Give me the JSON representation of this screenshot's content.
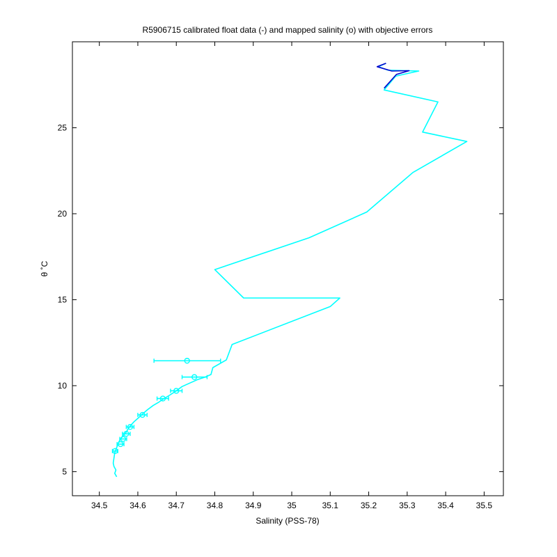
{
  "chart_data": {
    "type": "line",
    "title": "R5906715 calibrated float data (-) and mapped salinity (o) with objective errors",
    "xlabel": "Salinity (PSS-78)",
    "ylabel": "θ ˚C",
    "xlim": [
      34.43,
      35.55
    ],
    "ylim": [
      3.6,
      30
    ],
    "x_ticks": [
      "34.5",
      "34.6",
      "34.7",
      "34.8",
      "34.9",
      "35",
      "35.1",
      "35.2",
      "35.3",
      "35.4",
      "35.5"
    ],
    "y_ticks": [
      "5",
      "10",
      "15",
      "20",
      "25"
    ],
    "grid": false,
    "colors": {
      "profile": "#00ffff",
      "near_surface": "#0000cc",
      "mapped": "#00ffff",
      "axes": "#000000"
    },
    "series": [
      {
        "points": [
          [
            34.545,
            4.7
          ],
          [
            34.54,
            4.9
          ],
          [
            34.543,
            5.1
          ],
          [
            34.538,
            5.3
          ],
          [
            34.536,
            5.5
          ],
          [
            34.538,
            5.8
          ],
          [
            34.54,
            6.1
          ],
          [
            34.545,
            6.4
          ],
          [
            34.55,
            6.7
          ],
          [
            34.555,
            6.9
          ],
          [
            34.562,
            7.1
          ],
          [
            34.57,
            7.3
          ],
          [
            34.575,
            7.5
          ],
          [
            34.582,
            7.7
          ],
          [
            34.59,
            7.9
          ],
          [
            34.6,
            8.1
          ],
          [
            34.612,
            8.35
          ],
          [
            34.625,
            8.6
          ],
          [
            34.64,
            8.85
          ],
          [
            34.655,
            9.05
          ],
          [
            34.668,
            9.25
          ],
          [
            34.683,
            9.45
          ],
          [
            34.7,
            9.7
          ],
          [
            34.715,
            9.95
          ],
          [
            34.735,
            10.15
          ],
          [
            34.755,
            10.35
          ],
          [
            34.775,
            10.5
          ],
          [
            34.79,
            10.65
          ],
          [
            34.795,
            11.05
          ],
          [
            34.83,
            11.5
          ],
          [
            34.845,
            12.4
          ],
          [
            35.1,
            14.6
          ],
          [
            35.125,
            15.1
          ],
          [
            34.875,
            15.1
          ],
          [
            34.8,
            16.75
          ],
          [
            35.045,
            18.6
          ],
          [
            35.195,
            20.1
          ],
          [
            35.315,
            22.4
          ],
          [
            35.455,
            24.2
          ],
          [
            35.34,
            24.75
          ],
          [
            35.38,
            26.5
          ],
          [
            35.24,
            27.2
          ],
          [
            35.27,
            28.0
          ],
          [
            35.33,
            28.3
          ],
          [
            35.25,
            28.35
          ],
          [
            35.225,
            28.55
          ],
          [
            35.245,
            28.75
          ]
        ]
      },
      {
        "points": [
          [
            35.245,
            28.75
          ],
          [
            35.222,
            28.55
          ],
          [
            35.26,
            28.3
          ],
          [
            35.305,
            28.32
          ],
          [
            35.272,
            28.1
          ],
          [
            35.24,
            27.3
          ]
        ]
      }
    ],
    "mapped": [
      {
        "salinity": 34.728,
        "theta": 11.45,
        "err_lo": 34.642,
        "err_hi": 34.815
      },
      {
        "salinity": 34.747,
        "theta": 10.5,
        "err_lo": 34.715,
        "err_hi": 34.78
      },
      {
        "salinity": 34.7,
        "theta": 9.7,
        "err_lo": 34.685,
        "err_hi": 34.715
      },
      {
        "salinity": 34.665,
        "theta": 9.25,
        "err_lo": 34.65,
        "err_hi": 34.68
      },
      {
        "salinity": 34.612,
        "theta": 8.3,
        "err_lo": 34.6,
        "err_hi": 34.624
      },
      {
        "salinity": 34.58,
        "theta": 7.6,
        "err_lo": 34.57,
        "err_hi": 34.59
      },
      {
        "salinity": 34.57,
        "theta": 7.2,
        "err_lo": 34.56,
        "err_hi": 34.58
      },
      {
        "salinity": 34.562,
        "theta": 6.9,
        "err_lo": 34.553,
        "err_hi": 34.571
      },
      {
        "salinity": 34.555,
        "theta": 6.6,
        "err_lo": 34.546,
        "err_hi": 34.564
      },
      {
        "salinity": 34.541,
        "theta": 6.2,
        "err_lo": 34.534,
        "err_hi": 34.548
      }
    ]
  }
}
